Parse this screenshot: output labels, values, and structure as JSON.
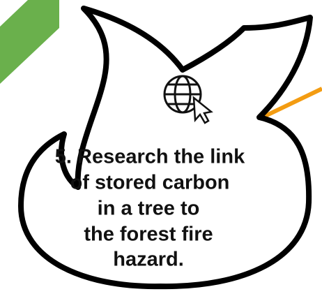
{
  "text": {
    "lines": [
      "5. Research the link",
      "of stored carbon",
      "in a tree to",
      "the forest fire",
      "hazard."
    ]
  }
}
